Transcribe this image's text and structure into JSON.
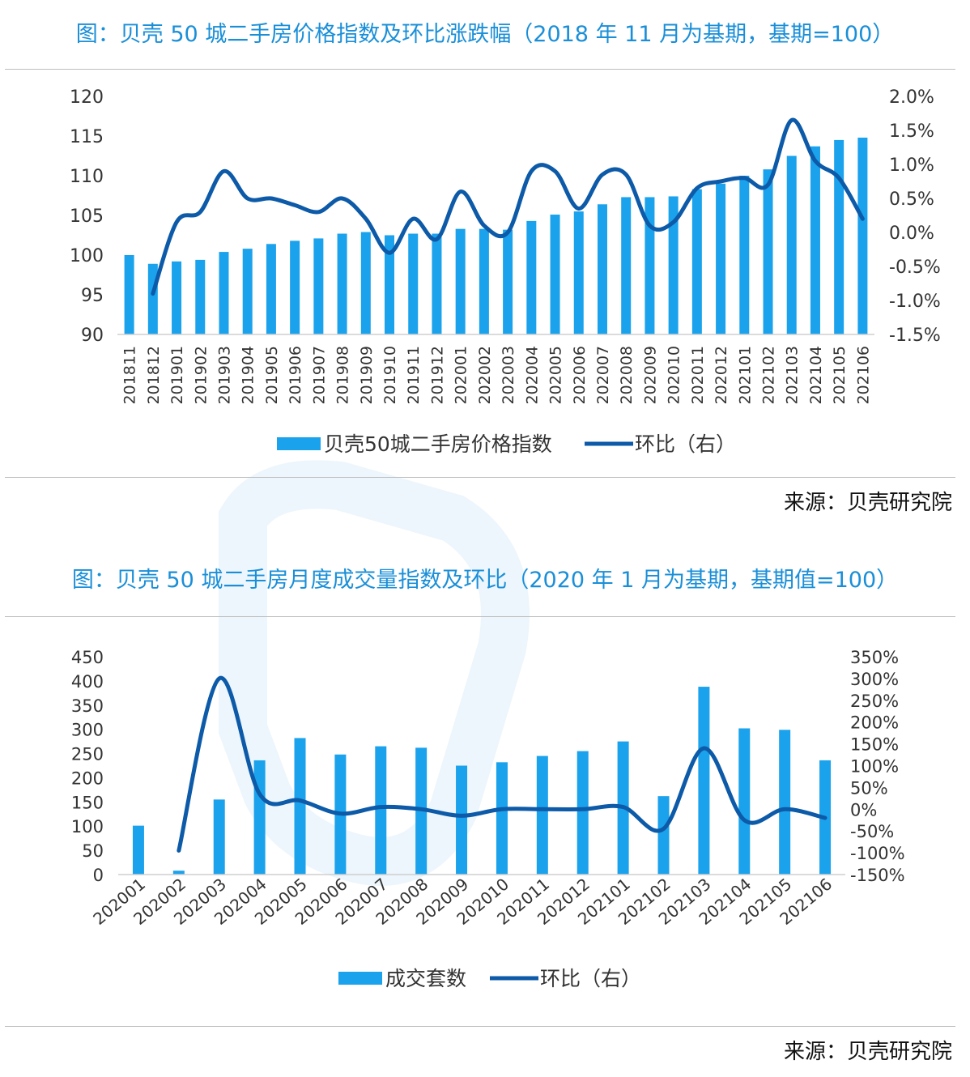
{
  "source_label": "来源：贝壳研究院",
  "chart_data": [
    {
      "type": "bar+line",
      "title": "图：贝壳 50 城二手房价格指数及环比涨跌幅（2018 年 11 月为基期，基期=100）",
      "categories": [
        "201811",
        "201812",
        "201901",
        "201902",
        "201903",
        "201904",
        "201905",
        "201906",
        "201907",
        "201908",
        "201909",
        "201910",
        "201911",
        "201912",
        "202001",
        "202002",
        "202003",
        "202004",
        "202005",
        "202006",
        "202007",
        "202008",
        "202009",
        "202010",
        "202011",
        "202012",
        "202101",
        "202102",
        "202103",
        "202104",
        "202105",
        "202106"
      ],
      "series": [
        {
          "name": "贝壳50城二手房价格指数",
          "kind": "bar",
          "axis": "left",
          "values": [
            100.0,
            98.9,
            99.2,
            99.4,
            100.4,
            100.8,
            101.4,
            101.8,
            102.1,
            102.7,
            102.9,
            102.5,
            102.7,
            102.7,
            103.3,
            103.3,
            103.2,
            104.3,
            105.1,
            105.5,
            106.4,
            107.3,
            107.3,
            107.4,
            108.3,
            109.0,
            110.0,
            110.8,
            112.5,
            113.7,
            114.5,
            114.8
          ]
        },
        {
          "name": "环比（右）",
          "kind": "line",
          "axis": "right",
          "values": [
            null,
            -0.9,
            0.15,
            0.3,
            0.9,
            0.5,
            0.5,
            0.4,
            0.3,
            0.5,
            0.2,
            -0.3,
            0.2,
            -0.1,
            0.6,
            0.1,
            0.0,
            0.9,
            0.9,
            0.35,
            0.85,
            0.85,
            0.1,
            0.15,
            0.65,
            0.75,
            0.8,
            0.7,
            1.65,
            1.05,
            0.8,
            0.2
          ]
        }
      ],
      "y_left": {
        "min": 90,
        "max": 120,
        "ticks": [
          "120",
          "115",
          "110",
          "105",
          "100",
          "95",
          "90"
        ]
      },
      "y_right": {
        "min": -1.5,
        "max": 2.0,
        "ticks": [
          "2.0%",
          "1.5%",
          "1.0%",
          "0.5%",
          "0.0%",
          "-0.5%",
          "-1.0%",
          "-1.5%"
        ]
      },
      "legend": {
        "placement": "bottom",
        "bar_label": "贝壳50城二手房价格指数",
        "line_label": "环比（右）"
      },
      "grid": false
    },
    {
      "type": "bar+line",
      "title": "图：贝壳 50 城二手房月度成交量指数及环比（2020 年 1 月为基期，基期值=100）",
      "categories": [
        "202001",
        "202002",
        "202003",
        "202004",
        "202005",
        "202006",
        "202007",
        "202008",
        "202009",
        "202010",
        "202011",
        "202012",
        "202101",
        "202102",
        "202103",
        "202104",
        "202105",
        "202106"
      ],
      "series": [
        {
          "name": "成交套数",
          "kind": "bar",
          "axis": "left",
          "values": [
            101,
            8,
            155,
            236,
            282,
            248,
            265,
            262,
            225,
            232,
            245,
            255,
            275,
            162,
            388,
            302,
            299,
            236
          ]
        },
        {
          "name": "环比（右）",
          "kind": "line",
          "axis": "right",
          "values": [
            null,
            -95,
            300,
            35,
            20,
            -10,
            5,
            0,
            -15,
            0,
            0,
            0,
            5,
            -45,
            140,
            -25,
            0,
            -20
          ]
        }
      ],
      "y_left": {
        "min": 0,
        "max": 450,
        "ticks": [
          "450",
          "400",
          "350",
          "300",
          "250",
          "200",
          "150",
          "100",
          "50",
          "0"
        ]
      },
      "y_right": {
        "min": -150,
        "max": 350,
        "ticks": [
          "350%",
          "300%",
          "250%",
          "200%",
          "150%",
          "100%",
          "50%",
          "0%",
          "-50%",
          "-100%",
          "-150%"
        ]
      },
      "legend": {
        "placement": "bottom",
        "bar_label": "成交套数",
        "line_label": "环比（右）"
      },
      "grid": false
    }
  ]
}
